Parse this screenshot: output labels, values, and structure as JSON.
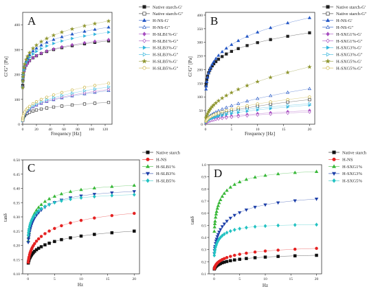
{
  "chart_data": [
    {
      "letter": "A",
      "type": "scatter",
      "xlabel": "Frequency [Hz]",
      "ylabel": "G'/G\" [Pa]",
      "xlim": [
        0,
        130
      ],
      "ylim": [
        0,
        450
      ],
      "xticks": [
        0,
        20,
        40,
        60,
        80,
        100,
        120
      ],
      "yticks": [
        0,
        100,
        200,
        300,
        400
      ],
      "curve_type": "power",
      "legend_position": "top-right",
      "x": [
        0.1,
        0.3,
        0.6,
        1,
        2,
        3,
        5,
        7,
        10,
        15,
        20,
        27,
        35,
        45,
        57,
        72,
        90,
        105,
        125
      ],
      "series": [
        {
          "name": "Native starch-G'",
          "marker": "square",
          "filled": true,
          "color": "#222222",
          "v1": 200,
          "v125": 335
        },
        {
          "name": "Native starch-G\"",
          "marker": "square",
          "filled": false,
          "color": "#333333",
          "v1": 28,
          "v125": 88
        },
        {
          "name": "H-NS-G'",
          "marker": "triangle-up",
          "filled": true,
          "color": "#2457c5",
          "v1": 205,
          "v125": 390
        },
        {
          "name": "H-NS-G\"",
          "marker": "triangle-up",
          "filled": false,
          "color": "#2457c5",
          "v1": 30,
          "v125": 135
        },
        {
          "name": "H-SLB1%-G'",
          "marker": "diamond",
          "filled": true,
          "color": "#a74fc0",
          "v1": 196,
          "v125": 340
        },
        {
          "name": "H-SLB1%-G\"",
          "marker": "diamond",
          "filled": false,
          "color": "#a74fc0",
          "v1": 30,
          "v125": 140
        },
        {
          "name": "H-SLB3%-G'",
          "marker": "triangle-right",
          "filled": true,
          "color": "#33b5dd",
          "v1": 200,
          "v125": 370
        },
        {
          "name": "H-SLB3%-G\"",
          "marker": "triangle-right",
          "filled": false,
          "color": "#33b5dd",
          "v1": 30,
          "v125": 150
        },
        {
          "name": "H-SLB5%-G'",
          "marker": "star",
          "filled": true,
          "color": "#8f9630",
          "v1": 206,
          "v125": 415
        },
        {
          "name": "H-SLB5%-G\"",
          "marker": "circle",
          "filled": false,
          "color": "#c8b23e",
          "v1": 34,
          "v125": 165
        }
      ]
    },
    {
      "letter": "B",
      "type": "scatter",
      "xlabel": "Frequency [Hz]",
      "ylabel": "G'/G\" [Pa]",
      "xlim": [
        0,
        21
      ],
      "ylim": [
        0,
        410
      ],
      "xticks": [
        0,
        5,
        10,
        15,
        20
      ],
      "yticks": [
        0,
        50,
        100,
        150,
        200,
        250,
        300,
        350,
        400
      ],
      "curve_type": "power",
      "legend_position": "top-right",
      "x": [
        0.1,
        0.15,
        0.25,
        0.4,
        0.6,
        0.8,
        1,
        1.3,
        1.6,
        2,
        2.5,
        3.2,
        4,
        5,
        6.3,
        8,
        10,
        12.5,
        15.8,
        20
      ],
      "series": [
        {
          "name": "Native starch-G'",
          "marker": "square",
          "filled": true,
          "color": "#222222",
          "v1": 205,
          "v20": 335
        },
        {
          "name": "Native starch-G\"",
          "marker": "square",
          "filled": false,
          "color": "#333333",
          "v1": 24,
          "v20": 90
        },
        {
          "name": "H-NS-G'",
          "marker": "triangle-up",
          "filled": true,
          "color": "#2457c5",
          "v1": 208,
          "v20": 390
        },
        {
          "name": "H-NS-G\"",
          "marker": "triangle-up",
          "filled": false,
          "color": "#2457c5",
          "v1": 32,
          "v20": 130
        },
        {
          "name": "H-SXG1%-G'",
          "marker": "diamond",
          "filled": true,
          "color": "#a74fc0",
          "v1": 16,
          "v20": 50
        },
        {
          "name": "H-SXG1%-G\"",
          "marker": "diamond",
          "filled": false,
          "color": "#a74fc0",
          "v1": 14,
          "v20": 45
        },
        {
          "name": "H-SXG3%-G'",
          "marker": "triangle-right",
          "filled": true,
          "color": "#33b5dd",
          "v1": 20,
          "v20": 70
        },
        {
          "name": "H-SXG3%-G\"",
          "marker": "triangle-right",
          "filled": false,
          "color": "#33b5dd",
          "v1": 26,
          "v20": 75
        },
        {
          "name": "H-SXG5%-G'",
          "marker": "star",
          "filled": true,
          "color": "#8f9630",
          "v1": 58,
          "v20": 210
        },
        {
          "name": "H-SXG5%-G\"",
          "marker": "circle",
          "filled": false,
          "color": "#c8b23e",
          "v1": 28,
          "v20": 100
        }
      ]
    },
    {
      "letter": "C",
      "type": "scatter",
      "xlabel": "Hz",
      "ylabel": "tanδ",
      "xlim": [
        -1,
        21
      ],
      "ylim": [
        0.1,
        0.5
      ],
      "xticks": [
        0,
        5,
        10,
        15,
        20
      ],
      "yticks": [
        0.1,
        0.15,
        0.2,
        0.25,
        0.3,
        0.35,
        0.4,
        0.45,
        0.5
      ],
      "ytick_decimals": 2,
      "curve_type": "saturating",
      "legend_position": "top-right",
      "x": [
        0.05,
        0.1,
        0.15,
        0.2,
        0.3,
        0.4,
        0.5,
        0.65,
        0.8,
        1,
        1.25,
        1.6,
        2,
        2.5,
        3.2,
        4,
        5,
        6.3,
        8,
        10,
        12.5,
        15.8,
        20
      ],
      "series": [
        {
          "name": "Native starch",
          "marker": "square",
          "filled": true,
          "color": "#111111",
          "y0": 0.125,
          "ymax": 0.275,
          "k": 0.25
        },
        {
          "name": "H-NS",
          "marker": "circle",
          "filled": true,
          "color": "#e52222",
          "y0": 0.12,
          "ymax": 0.345,
          "k": 0.27
        },
        {
          "name": "H-SLB1%",
          "marker": "triangle-up",
          "filled": true,
          "color": "#38b838",
          "y0": 0.18,
          "ymax": 0.42,
          "k": 0.45
        },
        {
          "name": "H-SLB3%",
          "marker": "triangle-down",
          "filled": true,
          "color": "#1d3fa8",
          "y0": 0.18,
          "ymax": 0.4,
          "k": 0.42
        },
        {
          "name": "H-SLB5%",
          "marker": "diamond",
          "filled": true,
          "color": "#23c2c2",
          "y0": 0.21,
          "ymax": 0.385,
          "k": 0.45
        }
      ]
    },
    {
      "letter": "D",
      "type": "scatter",
      "xlabel": "Hz",
      "ylabel": "tanδ",
      "xlim": [
        -1,
        21
      ],
      "ylim": [
        0.1,
        1.0
      ],
      "xticks": [
        0,
        5,
        10,
        15,
        20
      ],
      "yticks": [
        0.1,
        0.2,
        0.3,
        0.4,
        0.5,
        0.6,
        0.7,
        0.8,
        0.9,
        1.0
      ],
      "ytick_decimals": 1,
      "curve_type": "saturating",
      "legend_position": "top-right",
      "x": [
        0.05,
        0.1,
        0.15,
        0.2,
        0.3,
        0.4,
        0.5,
        0.65,
        0.8,
        1,
        1.25,
        1.6,
        2,
        2.5,
        3.2,
        4,
        5,
        6.3,
        8,
        10,
        12.5,
        15.8,
        20
      ],
      "series": [
        {
          "name": "Native starch",
          "marker": "square",
          "filled": true,
          "color": "#111111",
          "y0": 0.125,
          "ymax": 0.27,
          "k": 0.3
        },
        {
          "name": "H-NS",
          "marker": "circle",
          "filled": true,
          "color": "#e52222",
          "y0": 0.12,
          "ymax": 0.335,
          "k": 0.3
        },
        {
          "name": "H-SXG1%",
          "marker": "triangle-up",
          "filled": true,
          "color": "#38b838",
          "y0": 0.35,
          "ymax": 0.96,
          "k": 0.5
        },
        {
          "name": "H-SXG3%",
          "marker": "triangle-down",
          "filled": true,
          "color": "#1d3fa8",
          "y0": 0.2,
          "ymax": 0.76,
          "k": 0.36
        },
        {
          "name": "H-SXG5%",
          "marker": "diamond",
          "filled": true,
          "color": "#23c2c2",
          "y0": 0.19,
          "ymax": 0.51,
          "k": 0.6
        }
      ]
    }
  ]
}
